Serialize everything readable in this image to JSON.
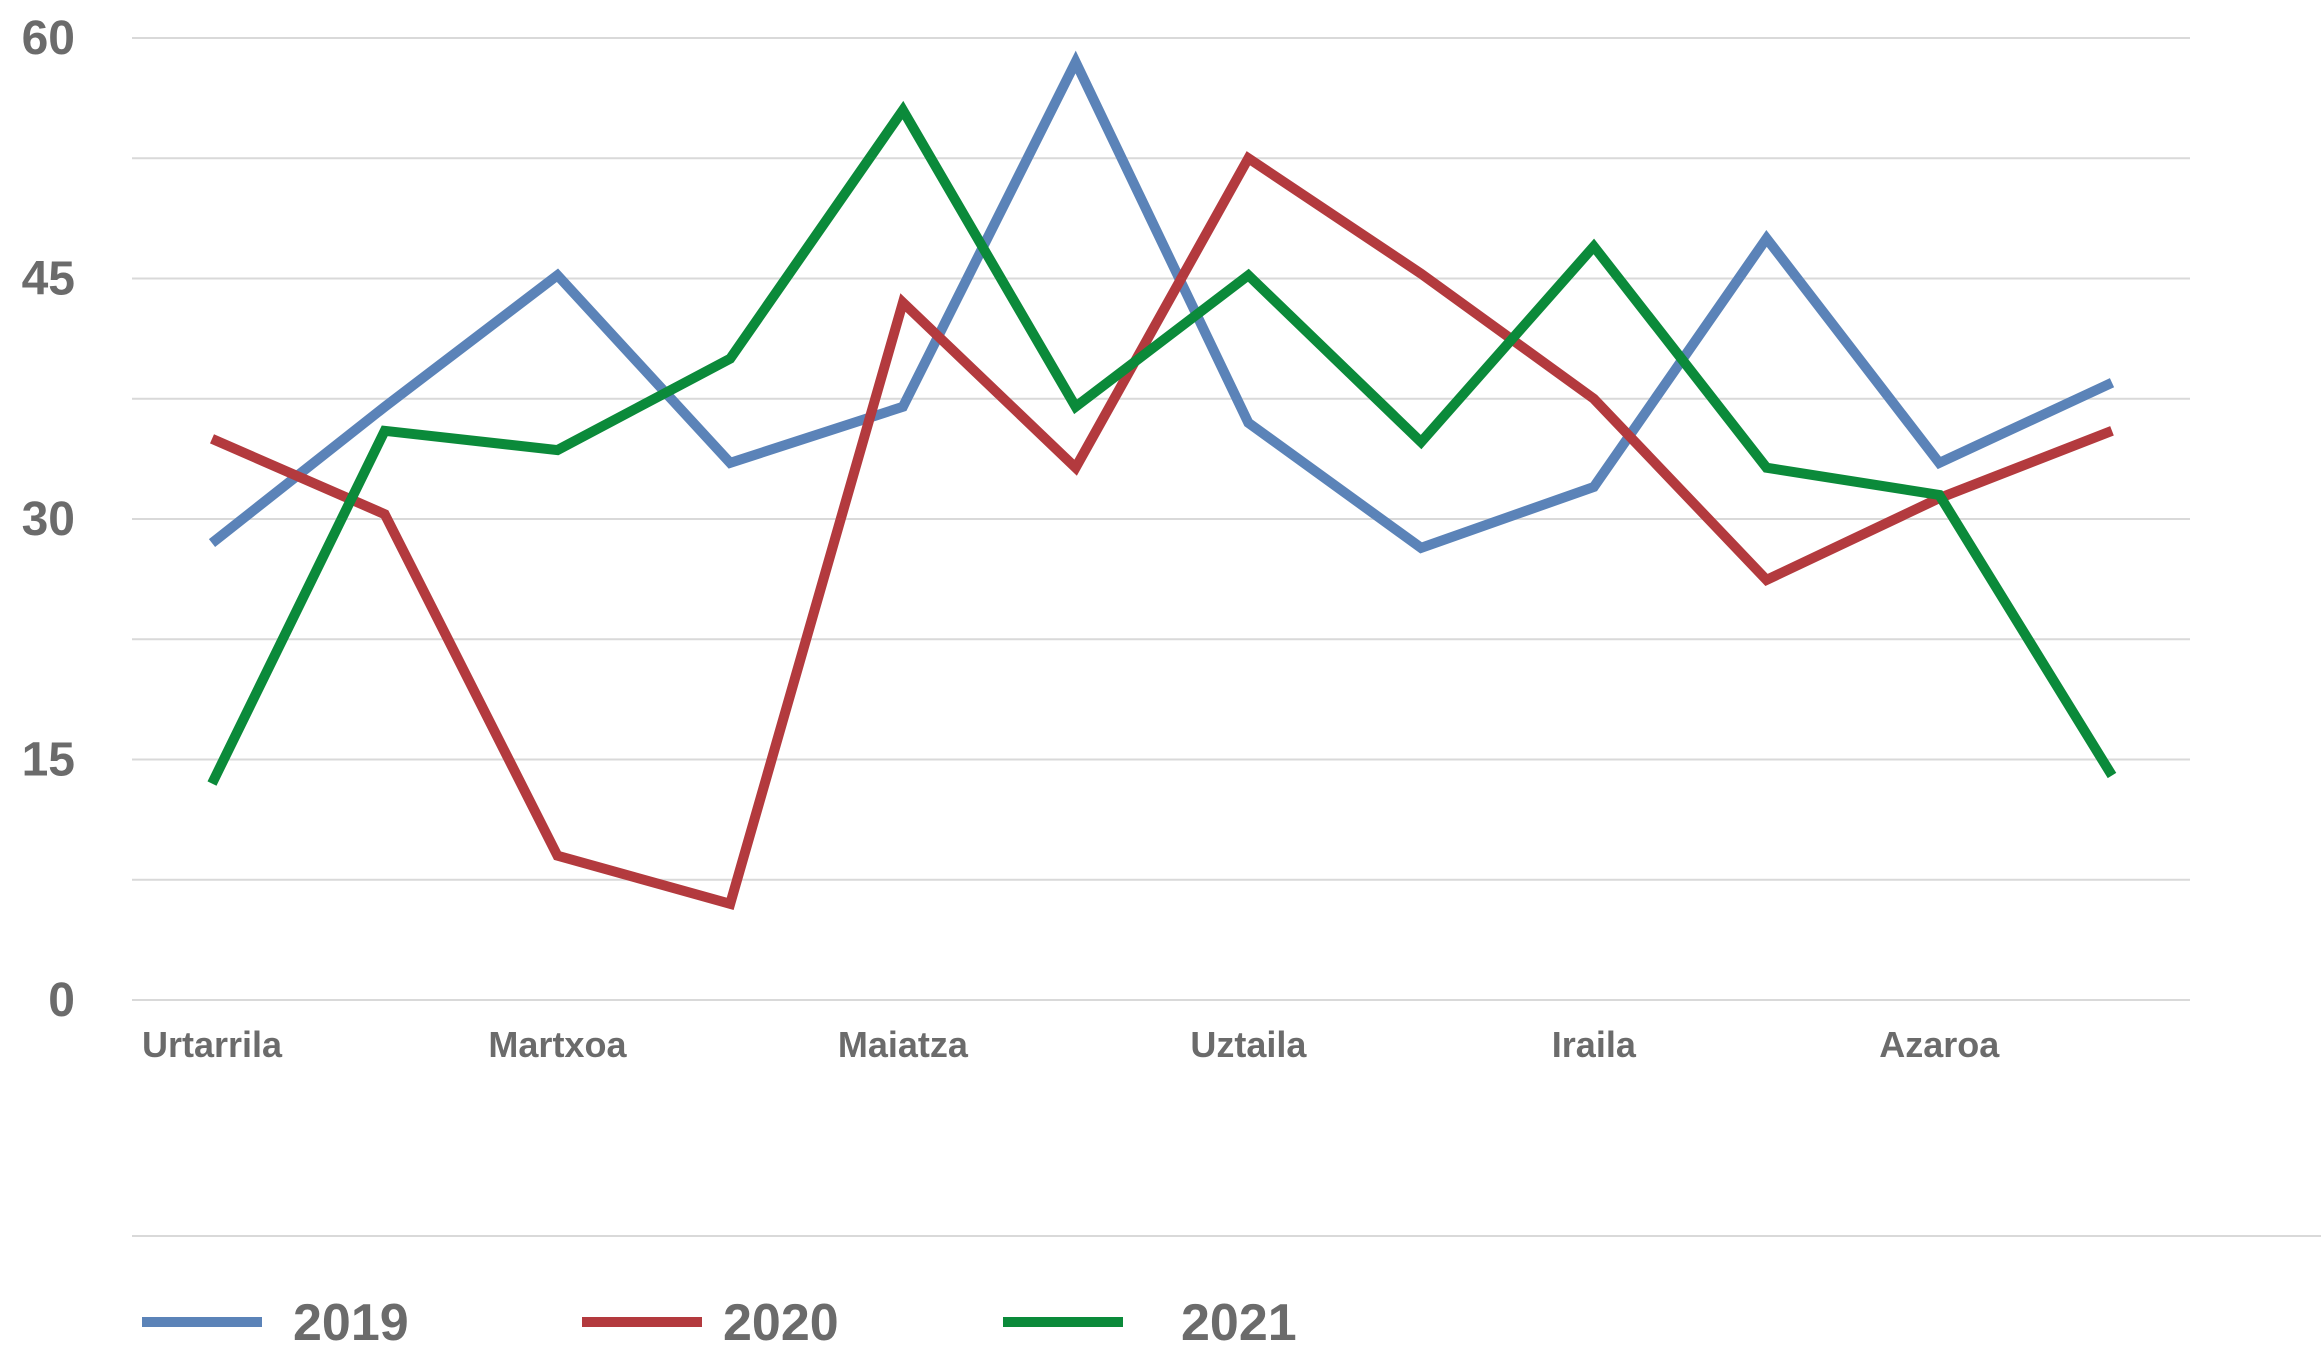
{
  "chart_data": {
    "type": "line",
    "title": "",
    "xlabel": "",
    "ylabel": "",
    "ylim": [
      0,
      60
    ],
    "yticks": [
      0,
      15,
      30,
      45,
      60
    ],
    "minor_grid_step": 7.5,
    "grid": true,
    "legend": "bottom",
    "x_labels": [
      "Urtarrila",
      "Martxoa",
      "Maiatza",
      "Uztaila",
      "Iraila",
      "Azaroa"
    ],
    "x_label_positions": [
      0,
      2,
      4,
      6,
      8,
      10
    ],
    "x_count": 12,
    "series": [
      {
        "name": "2019",
        "color": "#5b83b8",
        "values": [
          28.5,
          37,
          45.2,
          33.5,
          37,
          58.5,
          36,
          28.2,
          32,
          47.5,
          33.5,
          38.5
        ]
      },
      {
        "name": "2020",
        "color": "#b33a3e",
        "values": [
          35,
          30.3,
          9,
          6,
          43.5,
          33.2,
          52.5,
          45.3,
          37.5,
          26.2,
          31.3,
          35.5
        ]
      },
      {
        "name": "2021",
        "color": "#0b8a3a",
        "values": [
          13.5,
          35.5,
          34.3,
          40,
          55.5,
          37,
          45.2,
          34.8,
          47,
          33.2,
          31.5,
          14
        ]
      }
    ]
  }
}
